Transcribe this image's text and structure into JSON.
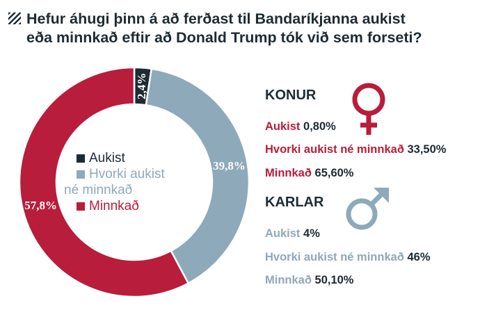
{
  "title": {
    "line1": "Hefur áhugi þinn á að ferðast til Bandaríkjanna aukist",
    "line2": "eða minnkað eftir að Donald Trump tók við sem forseti?"
  },
  "colors": {
    "dark": "#1d2b33",
    "crimson": "#b81d3b",
    "steel": "#8ea9b9"
  },
  "chart_data": {
    "type": "pie",
    "categories": [
      "Aukist",
      "Hvorki aukist né minnkað",
      "Minnkað"
    ],
    "values": [
      2.4,
      39.8,
      57.8
    ],
    "value_labels": [
      "2,4%",
      "39,8%",
      "57,8%"
    ],
    "legend_position": "center",
    "colors": [
      "#1d2b33",
      "#8ea9b9",
      "#b81d3b"
    ]
  },
  "legend": {
    "aukist": "Aukist",
    "hvorki_line1": "Hvorki aukist",
    "hvorki_line2": "né minnkað",
    "minnkad": "Minnkað"
  },
  "women": {
    "heading": "KONUR",
    "icon": "female-symbol-icon",
    "stats": [
      {
        "label": "Aukist",
        "value": "0,80%"
      },
      {
        "label": "Hvorki aukist né minnkað",
        "value": "33,50%"
      },
      {
        "label": "Minnkað",
        "value": "65,60%"
      }
    ]
  },
  "men": {
    "heading": "KARLAR",
    "icon": "male-symbol-icon",
    "stats": [
      {
        "label": "Aukist",
        "value": "4%"
      },
      {
        "label": "Hvorki aukist né minnkað",
        "value": "46%"
      },
      {
        "label": "Minnkað",
        "value": "50,10%"
      }
    ]
  }
}
